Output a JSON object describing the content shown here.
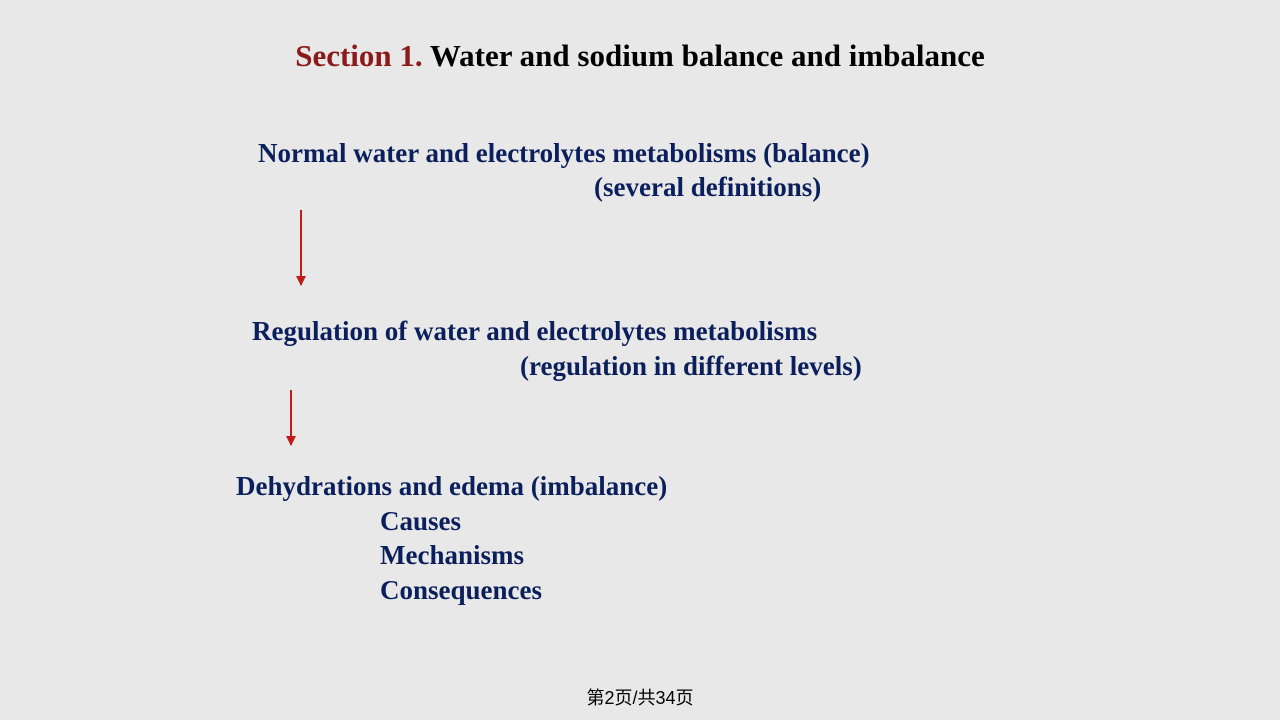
{
  "title": {
    "section_label": "Section 1.",
    "section_text": " Water and sodium balance and imbalance"
  },
  "block1": {
    "line1": "Normal water and electrolytes metabolisms (balance)",
    "line2": "(several definitions)"
  },
  "block2": {
    "line1": "Regulation of water and electrolytes metabolisms",
    "line2": "(regulation in different levels)"
  },
  "block3": {
    "line1": "Dehydrations and edema (imbalance)",
    "line2": "Causes",
    "line3": "Mechanisms",
    "line4": "Consequences"
  },
  "pageIndicator": "第2页/共34页",
  "colors": {
    "background": "#e8e8e8",
    "section_label": "#8b1a1a",
    "title_text": "#000000",
    "body_text": "#0b1f5c",
    "arrow": "#c21b1b"
  },
  "arrows": [
    {
      "from": "block1",
      "to": "block2"
    },
    {
      "from": "block2",
      "to": "block3"
    }
  ]
}
